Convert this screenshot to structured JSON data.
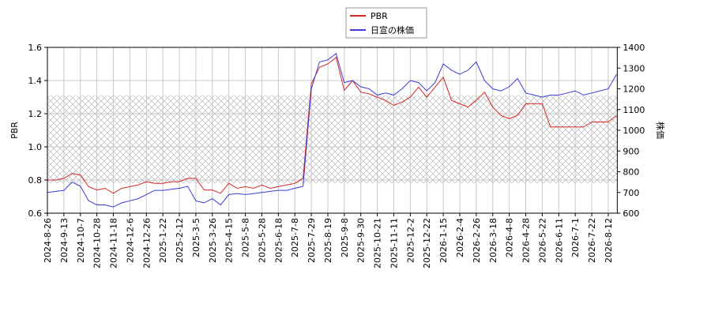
{
  "chart_data": {
    "type": "line",
    "categories": [
      "2024-8-26",
      null,
      "2024-9-13",
      null,
      "2024-10-7",
      null,
      "2024-10-28",
      null,
      "2024-11-18",
      null,
      "2024-12-6",
      null,
      "2024-12-26",
      null,
      "2025-1-22",
      null,
      "2025-2-12",
      null,
      "2025-3-5",
      null,
      "2025-3-26",
      null,
      "2025-4-15",
      null,
      "2025-5-8",
      null,
      "2025-5-28",
      null,
      "2025-6-18",
      null,
      "2025-7-8",
      null,
      "2025-7-29",
      null,
      "2025-8-19",
      null,
      "2025-9-8",
      null,
      "2025-9-30",
      null,
      "2025-10-21",
      null,
      "2025-11-11",
      null,
      "2025-12-2",
      null,
      "2025-12-22",
      null,
      "2026-1-15",
      null,
      "2026-2-4",
      null,
      "2026-2-26",
      null,
      "2026-3-18",
      null,
      "2026-4-8",
      null,
      "2026-4-28",
      null,
      "2026-5-22",
      null,
      "2026-6-11",
      null,
      "2026-7-1",
      null,
      "2026-7-22",
      null,
      "2026-8-12",
      null
    ],
    "series": [
      {
        "name": "PBR",
        "color": "#d62728",
        "axis": "y",
        "values": [
          0.8,
          0.8,
          0.81,
          0.84,
          0.83,
          0.76,
          0.74,
          0.75,
          0.72,
          0.75,
          0.76,
          0.77,
          0.79,
          0.78,
          0.78,
          0.79,
          0.79,
          0.81,
          0.81,
          0.74,
          0.74,
          0.72,
          0.78,
          0.75,
          0.76,
          0.75,
          0.77,
          0.75,
          0.76,
          0.77,
          0.78,
          0.81,
          1.38,
          1.48,
          1.5,
          1.54,
          1.34,
          1.4,
          1.33,
          1.32,
          1.3,
          1.28,
          1.25,
          1.27,
          1.3,
          1.36,
          1.3,
          1.36,
          1.42,
          1.28,
          1.26,
          1.24,
          1.28,
          1.33,
          1.24,
          1.19,
          1.17,
          1.19,
          1.26,
          1.26,
          1.26,
          1.12,
          1.12,
          1.12,
          1.12,
          1.12,
          1.15,
          1.15,
          1.15,
          1.19
        ]
      },
      {
        "name": "日宣の株価",
        "color": "#3b3bdc",
        "axis": "y2",
        "values": [
          700,
          705,
          710,
          750,
          730,
          660,
          640,
          640,
          630,
          650,
          660,
          670,
          690,
          710,
          710,
          715,
          720,
          730,
          660,
          650,
          670,
          640,
          690,
          695,
          690,
          695,
          700,
          705,
          710,
          710,
          720,
          730,
          1200,
          1330,
          1340,
          1370,
          1230,
          1240,
          1210,
          1200,
          1170,
          1180,
          1170,
          1200,
          1240,
          1230,
          1190,
          1230,
          1320,
          1290,
          1270,
          1290,
          1330,
          1240,
          1200,
          1190,
          1210,
          1250,
          1180,
          1170,
          1160,
          1170,
          1170,
          1180,
          1190,
          1170,
          1180,
          1190,
          1200,
          1270
        ]
      }
    ],
    "reference_band": [
      0.78,
      1.31
    ],
    "ylabel": "PBR",
    "y2label": "株価",
    "ylim": [
      0.6,
      1.6
    ],
    "yticks": [
      0.6,
      0.8,
      {
        "value": 1.0,
        "label": "1.0"
      },
      1.2,
      1.4,
      1.6
    ],
    "y2lim": [
      600,
      1400
    ],
    "y2ticks": [
      600,
      700,
      800,
      900,
      1000,
      1100,
      1200,
      1300,
      1400
    ],
    "grid": true,
    "legend": "top"
  }
}
